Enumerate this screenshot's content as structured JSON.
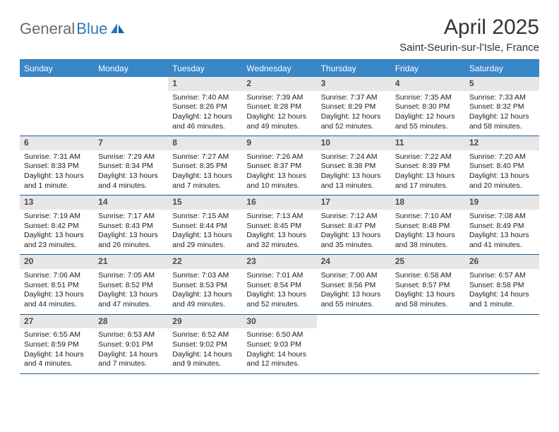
{
  "brand": {
    "part1": "General",
    "part2": "Blue"
  },
  "title": "April 2025",
  "location": "Saint-Seurin-sur-l'Isle, France",
  "colors": {
    "header_bg": "#3a87c8",
    "header_text": "#ffffff",
    "rule": "#1d5c94",
    "daynum_bg": "#e7e7e7",
    "body_text": "#202020",
    "brand_gray": "#6b6b6b",
    "brand_blue": "#2d77bd"
  },
  "layout": {
    "columns": 7,
    "first_day_column_index": 2,
    "weeks": 5
  },
  "day_headers": [
    "Sunday",
    "Monday",
    "Tuesday",
    "Wednesday",
    "Thursday",
    "Friday",
    "Saturday"
  ],
  "days": [
    {
      "n": 1,
      "sunrise": "7:40 AM",
      "sunset": "8:26 PM",
      "daylight": "12 hours and 46 minutes."
    },
    {
      "n": 2,
      "sunrise": "7:39 AM",
      "sunset": "8:28 PM",
      "daylight": "12 hours and 49 minutes."
    },
    {
      "n": 3,
      "sunrise": "7:37 AM",
      "sunset": "8:29 PM",
      "daylight": "12 hours and 52 minutes."
    },
    {
      "n": 4,
      "sunrise": "7:35 AM",
      "sunset": "8:30 PM",
      "daylight": "12 hours and 55 minutes."
    },
    {
      "n": 5,
      "sunrise": "7:33 AM",
      "sunset": "8:32 PM",
      "daylight": "12 hours and 58 minutes."
    },
    {
      "n": 6,
      "sunrise": "7:31 AM",
      "sunset": "8:33 PM",
      "daylight": "13 hours and 1 minute."
    },
    {
      "n": 7,
      "sunrise": "7:29 AM",
      "sunset": "8:34 PM",
      "daylight": "13 hours and 4 minutes."
    },
    {
      "n": 8,
      "sunrise": "7:27 AM",
      "sunset": "8:35 PM",
      "daylight": "13 hours and 7 minutes."
    },
    {
      "n": 9,
      "sunrise": "7:26 AM",
      "sunset": "8:37 PM",
      "daylight": "13 hours and 10 minutes."
    },
    {
      "n": 10,
      "sunrise": "7:24 AM",
      "sunset": "8:38 PM",
      "daylight": "13 hours and 13 minutes."
    },
    {
      "n": 11,
      "sunrise": "7:22 AM",
      "sunset": "8:39 PM",
      "daylight": "13 hours and 17 minutes."
    },
    {
      "n": 12,
      "sunrise": "7:20 AM",
      "sunset": "8:40 PM",
      "daylight": "13 hours and 20 minutes."
    },
    {
      "n": 13,
      "sunrise": "7:19 AM",
      "sunset": "8:42 PM",
      "daylight": "13 hours and 23 minutes."
    },
    {
      "n": 14,
      "sunrise": "7:17 AM",
      "sunset": "8:43 PM",
      "daylight": "13 hours and 26 minutes."
    },
    {
      "n": 15,
      "sunrise": "7:15 AM",
      "sunset": "8:44 PM",
      "daylight": "13 hours and 29 minutes."
    },
    {
      "n": 16,
      "sunrise": "7:13 AM",
      "sunset": "8:45 PM",
      "daylight": "13 hours and 32 minutes."
    },
    {
      "n": 17,
      "sunrise": "7:12 AM",
      "sunset": "8:47 PM",
      "daylight": "13 hours and 35 minutes."
    },
    {
      "n": 18,
      "sunrise": "7:10 AM",
      "sunset": "8:48 PM",
      "daylight": "13 hours and 38 minutes."
    },
    {
      "n": 19,
      "sunrise": "7:08 AM",
      "sunset": "8:49 PM",
      "daylight": "13 hours and 41 minutes."
    },
    {
      "n": 20,
      "sunrise": "7:06 AM",
      "sunset": "8:51 PM",
      "daylight": "13 hours and 44 minutes."
    },
    {
      "n": 21,
      "sunrise": "7:05 AM",
      "sunset": "8:52 PM",
      "daylight": "13 hours and 47 minutes."
    },
    {
      "n": 22,
      "sunrise": "7:03 AM",
      "sunset": "8:53 PM",
      "daylight": "13 hours and 49 minutes."
    },
    {
      "n": 23,
      "sunrise": "7:01 AM",
      "sunset": "8:54 PM",
      "daylight": "13 hours and 52 minutes."
    },
    {
      "n": 24,
      "sunrise": "7:00 AM",
      "sunset": "8:56 PM",
      "daylight": "13 hours and 55 minutes."
    },
    {
      "n": 25,
      "sunrise": "6:58 AM",
      "sunset": "8:57 PM",
      "daylight": "13 hours and 58 minutes."
    },
    {
      "n": 26,
      "sunrise": "6:57 AM",
      "sunset": "8:58 PM",
      "daylight": "14 hours and 1 minute."
    },
    {
      "n": 27,
      "sunrise": "6:55 AM",
      "sunset": "8:59 PM",
      "daylight": "14 hours and 4 minutes."
    },
    {
      "n": 28,
      "sunrise": "6:53 AM",
      "sunset": "9:01 PM",
      "daylight": "14 hours and 7 minutes."
    },
    {
      "n": 29,
      "sunrise": "6:52 AM",
      "sunset": "9:02 PM",
      "daylight": "14 hours and 9 minutes."
    },
    {
      "n": 30,
      "sunrise": "6:50 AM",
      "sunset": "9:03 PM",
      "daylight": "14 hours and 12 minutes."
    }
  ],
  "labels": {
    "sunrise_prefix": "Sunrise: ",
    "sunset_prefix": "Sunset: ",
    "daylight_prefix": "Daylight: "
  },
  "typography": {
    "title_fontsize": 30,
    "location_fontsize": 15,
    "dayhead_fontsize": 12,
    "daynum_fontsize": 12,
    "body_fontsize": 10.5
  }
}
